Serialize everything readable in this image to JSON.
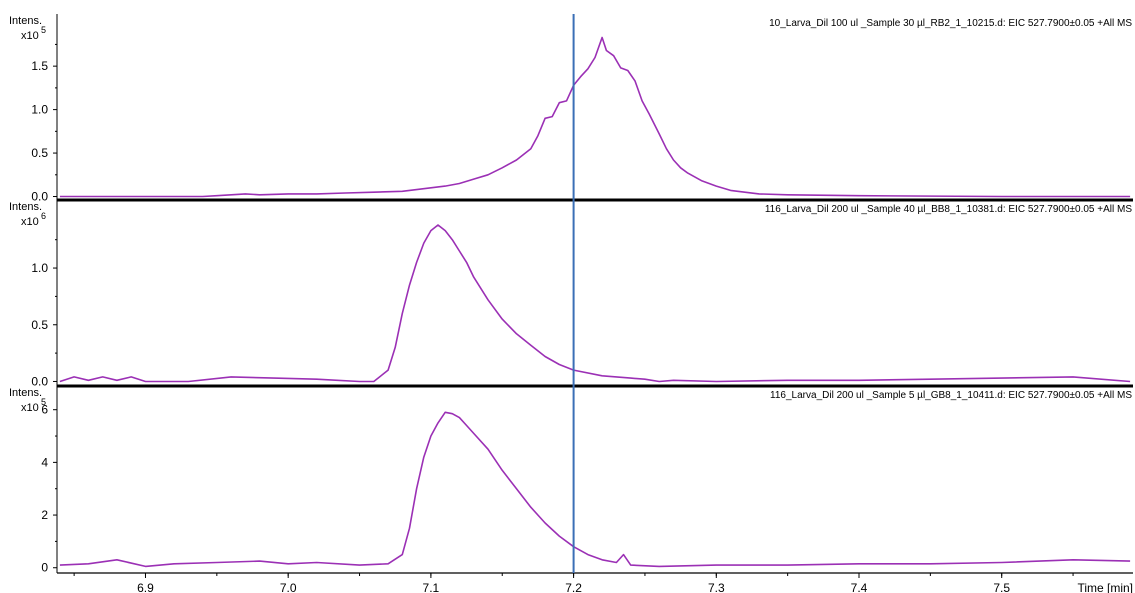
{
  "chart_data": [
    {
      "type": "line",
      "title": "10_Larva_Dil 100 ul _Sample 30 µl_RB2_1_10215.d: EIC 527.7900±0.05 +All MS",
      "ylabel": "Intens.",
      "yscale_label": "x10",
      "yscale_exp": "5",
      "xlim": [
        6.838,
        7.592
      ],
      "ylim": [
        -0.04,
        2.1
      ],
      "y_ticks": [
        0.0,
        0.5,
        1.0,
        1.5
      ],
      "y_tick_labels": [
        "0.0",
        "0.5",
        "1.0",
        "1.5"
      ],
      "series_color": "#9b30b5",
      "series": [
        {
          "x": [
            6.84,
            6.94,
            6.95,
            6.96,
            6.97,
            6.98,
            7.0,
            7.02,
            7.04,
            7.06,
            7.08,
            7.09,
            7.1,
            7.11,
            7.12,
            7.13,
            7.14,
            7.15,
            7.16,
            7.17,
            7.175,
            7.18,
            7.185,
            7.19,
            7.195,
            7.2,
            7.205,
            7.21,
            7.215,
            7.22,
            7.223,
            7.228,
            7.233,
            7.238,
            7.243,
            7.248,
            7.253,
            7.26,
            7.265,
            7.27,
            7.275,
            7.28,
            7.29,
            7.3,
            7.31,
            7.32,
            7.33,
            7.35,
            7.4,
            7.5,
            7.59
          ],
          "y": [
            0.0,
            0.0,
            0.01,
            0.02,
            0.03,
            0.02,
            0.03,
            0.03,
            0.04,
            0.05,
            0.06,
            0.08,
            0.1,
            0.12,
            0.15,
            0.2,
            0.25,
            0.33,
            0.42,
            0.55,
            0.7,
            0.9,
            0.92,
            1.08,
            1.1,
            1.28,
            1.38,
            1.47,
            1.6,
            1.83,
            1.68,
            1.62,
            1.48,
            1.45,
            1.33,
            1.1,
            0.95,
            0.72,
            0.55,
            0.42,
            0.33,
            0.27,
            0.18,
            0.12,
            0.07,
            0.05,
            0.03,
            0.02,
            0.01,
            0.0,
            0.0
          ]
        }
      ]
    },
    {
      "type": "line",
      "title": "116_Larva_Dil 200 ul _Sample 40 µl_BB8_1_10381.d: EIC 527.7900±0.05 +All MS",
      "ylabel": "Intens.",
      "yscale_label": "x10",
      "yscale_exp": "6",
      "xlim": [
        6.838,
        7.592
      ],
      "ylim": [
        -0.04,
        1.6
      ],
      "y_ticks": [
        0.0,
        0.5,
        1.0
      ],
      "y_tick_labels": [
        "0.0",
        "0.5",
        "1.0"
      ],
      "series_color": "#9b30b5",
      "series": [
        {
          "x": [
            6.84,
            6.85,
            6.86,
            6.87,
            6.88,
            6.89,
            6.9,
            6.93,
            6.96,
            6.99,
            7.02,
            7.05,
            7.06,
            7.07,
            7.075,
            7.08,
            7.085,
            7.09,
            7.095,
            7.1,
            7.105,
            7.11,
            7.115,
            7.12,
            7.125,
            7.13,
            7.14,
            7.15,
            7.16,
            7.17,
            7.18,
            7.19,
            7.2,
            7.22,
            7.24,
            7.25,
            7.26,
            7.27,
            7.3,
            7.35,
            7.4,
            7.45,
            7.5,
            7.55,
            7.59
          ],
          "y": [
            0.0,
            0.04,
            0.01,
            0.04,
            0.01,
            0.04,
            0.0,
            0.0,
            0.04,
            0.03,
            0.02,
            0.0,
            0.0,
            0.1,
            0.3,
            0.6,
            0.85,
            1.05,
            1.22,
            1.33,
            1.38,
            1.33,
            1.25,
            1.15,
            1.05,
            0.92,
            0.72,
            0.55,
            0.42,
            0.32,
            0.22,
            0.15,
            0.1,
            0.05,
            0.03,
            0.02,
            0.0,
            0.01,
            0.0,
            0.01,
            0.01,
            0.02,
            0.03,
            0.04,
            0.0
          ]
        }
      ]
    },
    {
      "type": "line",
      "title": "116_Larva_Dil 200 ul _Sample 5 µl_GB8_1_10411.d: EIC 527.7900±0.05 +All MS",
      "ylabel": "Intens.",
      "yscale_label": "x10",
      "yscale_exp": "5",
      "xlim": [
        6.838,
        7.592
      ],
      "ylim": [
        -0.2,
        6.9
      ],
      "y_ticks": [
        0,
        2,
        4,
        6
      ],
      "y_tick_labels": [
        "0",
        "2",
        "4",
        "6"
      ],
      "series_color": "#9b30b5",
      "series": [
        {
          "x": [
            6.84,
            6.86,
            6.88,
            6.9,
            6.92,
            6.95,
            6.98,
            7.0,
            7.02,
            7.05,
            7.07,
            7.08,
            7.085,
            7.09,
            7.095,
            7.1,
            7.105,
            7.11,
            7.115,
            7.12,
            7.125,
            7.13,
            7.14,
            7.15,
            7.16,
            7.17,
            7.18,
            7.19,
            7.2,
            7.21,
            7.22,
            7.23,
            7.235,
            7.24,
            7.26,
            7.3,
            7.35,
            7.4,
            7.45,
            7.5,
            7.55,
            7.59
          ],
          "y": [
            0.1,
            0.15,
            0.3,
            0.05,
            0.15,
            0.2,
            0.25,
            0.15,
            0.2,
            0.1,
            0.15,
            0.5,
            1.5,
            3.0,
            4.2,
            5.0,
            5.5,
            5.9,
            5.85,
            5.7,
            5.4,
            5.1,
            4.5,
            3.7,
            3.0,
            2.3,
            1.7,
            1.2,
            0.8,
            0.5,
            0.3,
            0.2,
            0.5,
            0.1,
            0.05,
            0.1,
            0.1,
            0.15,
            0.15,
            0.2,
            0.3,
            0.25
          ]
        }
      ]
    }
  ],
  "x_axis": {
    "ticks": [
      6.9,
      7.0,
      7.1,
      7.2,
      7.3,
      7.4,
      7.5
    ],
    "tick_labels": [
      "6.9",
      "7.0",
      "7.1",
      "7.2",
      "7.3",
      "7.4",
      "7.5"
    ],
    "label": "Time [min]"
  },
  "cursor": {
    "x": 7.2,
    "color": "#3b6fb6"
  },
  "colors": {
    "axis": "#000000",
    "trace": "#9b30b5",
    "cursor": "#3b6fb6",
    "background": "#ffffff"
  }
}
